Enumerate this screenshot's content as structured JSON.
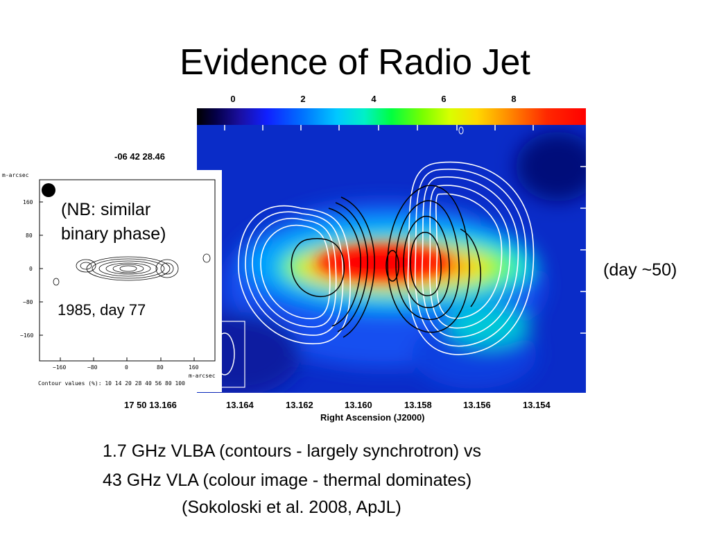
{
  "slide": {
    "title": "Evidence of Radio Jet",
    "colorbar_labels": [
      "0",
      "2",
      "4",
      "6",
      "8"
    ],
    "declination_label": "-06 42 28.46",
    "ra_ticks": [
      "17 50 13.166",
      "13.164",
      "13.162",
      "13.160",
      "13.158",
      "13.156",
      "13.154"
    ],
    "ra_axis_label": "Right Ascension (J2000)",
    "inset": {
      "y_unit": "m-arcsec",
      "y_ticks": [
        "160",
        "80",
        "0",
        "−80",
        "−160"
      ],
      "x_ticks": [
        "−160",
        "−80",
        "0",
        "80",
        "160"
      ],
      "x_unit": "m-arcsec",
      "contour_values": "Contour values (%): 10 14 20 28 40 56 80 100",
      "note_line1": "(NB: similar",
      "note_line2": "binary phase)",
      "caption": "1985, day 77"
    },
    "day_note": "(day ~50)",
    "caption_lines": [
      "1.7 GHz VLBA (contours - largely synchrotron) vs",
      "43 GHz VLA (colour image - thermal dominates)",
      "(Sokoloski et al. 2008, ApJL)"
    ],
    "colors": {
      "background": "#ffffff",
      "text": "#000000"
    }
  }
}
